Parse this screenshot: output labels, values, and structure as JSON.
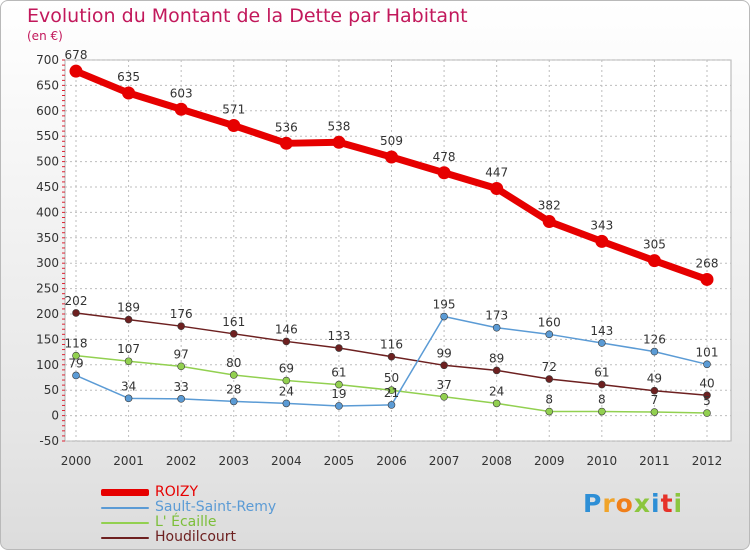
{
  "title": "Evolution du Montant de la Dette par Habitant",
  "subtitle": "(en €)",
  "brand": {
    "text": "Proxiti",
    "colors": [
      "#2e8fd6",
      "#f0a42a",
      "#f07f1a",
      "#8cc63f",
      "#2e8fd6",
      "#e6332a",
      "#8cc63f"
    ]
  },
  "chart_data": {
    "type": "line",
    "title": "Evolution du Montant de la Dette par Habitant",
    "subtitle": "(en €)",
    "x": [
      "2000",
      "2001",
      "2002",
      "2003",
      "2004",
      "2005",
      "2006",
      "2007",
      "2008",
      "2009",
      "2010",
      "2011",
      "2012"
    ],
    "ylim": [
      -50,
      700
    ],
    "yticks": [
      -50,
      0,
      50,
      100,
      150,
      200,
      250,
      300,
      350,
      400,
      450,
      500,
      550,
      600,
      650,
      700
    ],
    "grid": true,
    "legend_position": "bottom-left",
    "series": [
      {
        "name": "ROIZY",
        "color": "#e60000",
        "values": [
          678,
          635,
          603,
          571,
          536,
          538,
          509,
          478,
          447,
          382,
          343,
          305,
          268
        ]
      },
      {
        "name": "Sault-Saint-Remy",
        "color": "#5b9bd5",
        "values": [
          79,
          34,
          33,
          28,
          24,
          19,
          21,
          195,
          173,
          160,
          143,
          126,
          101
        ]
      },
      {
        "name": "L' Écaille",
        "color": "#92d050",
        "values": [
          118,
          107,
          97,
          80,
          69,
          61,
          50,
          37,
          24,
          8,
          8,
          7,
          5
        ]
      },
      {
        "name": "Houdilcourt",
        "color": "#6d2020",
        "values": [
          202,
          189,
          176,
          161,
          146,
          133,
          116,
          99,
          89,
          72,
          61,
          49,
          40
        ]
      }
    ]
  }
}
